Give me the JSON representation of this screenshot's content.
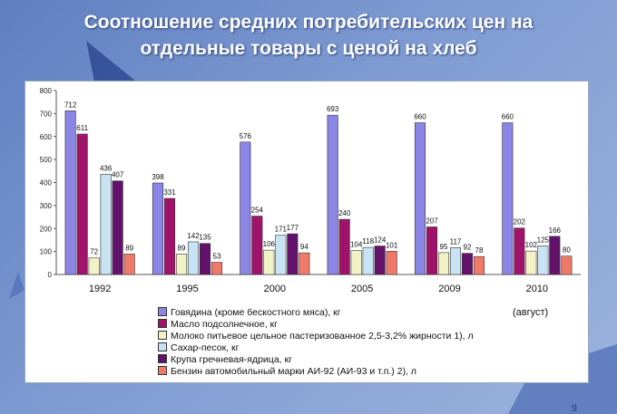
{
  "page": {
    "title_line1": "Соотношение средних потребительских цен на",
    "title_line2": "отдельные товары с ценой на хлеб",
    "year_note": "(август)",
    "page_number": "9"
  },
  "chart_data": {
    "type": "bar",
    "categories": [
      "1992",
      "1995",
      "2000",
      "2005",
      "2009",
      "2010"
    ],
    "ylim": [
      0,
      800
    ],
    "yticks": [
      0,
      100,
      200,
      300,
      400,
      500,
      600,
      700,
      800
    ],
    "grid": false,
    "legend_position": "bottom",
    "series": [
      {
        "name": "Говядина (кроме бескостного мяса), кг",
        "color": "#8b85e6",
        "values": [
          712,
          398,
          576,
          693,
          660,
          660
        ]
      },
      {
        "name": "Масло подсолнечное, кг",
        "color": "#a0136a",
        "values": [
          611,
          331,
          254,
          240,
          207,
          202
        ]
      },
      {
        "name": "Молоко питьевое цельное пастеризованное 2,5-3,2% жирности 1), л",
        "color": "#f3f1c6",
        "values": [
          72,
          89,
          106,
          104,
          95,
          102
        ]
      },
      {
        "name": "Сахар-песок, кг",
        "color": "#c8e3f3",
        "values": [
          436,
          142,
          171,
          118,
          117,
          125
        ]
      },
      {
        "name": "Крупа гречневая-ядрица, кг",
        "color": "#62126a",
        "values": [
          407,
          135,
          177,
          124,
          92,
          166
        ]
      },
      {
        "name": "Бензин автомобильный марки АИ-92 (АИ-93 и т.п.) 2), л",
        "color": "#f07a6a",
        "values": [
          89,
          53,
          94,
          101,
          78,
          80
        ]
      }
    ]
  }
}
